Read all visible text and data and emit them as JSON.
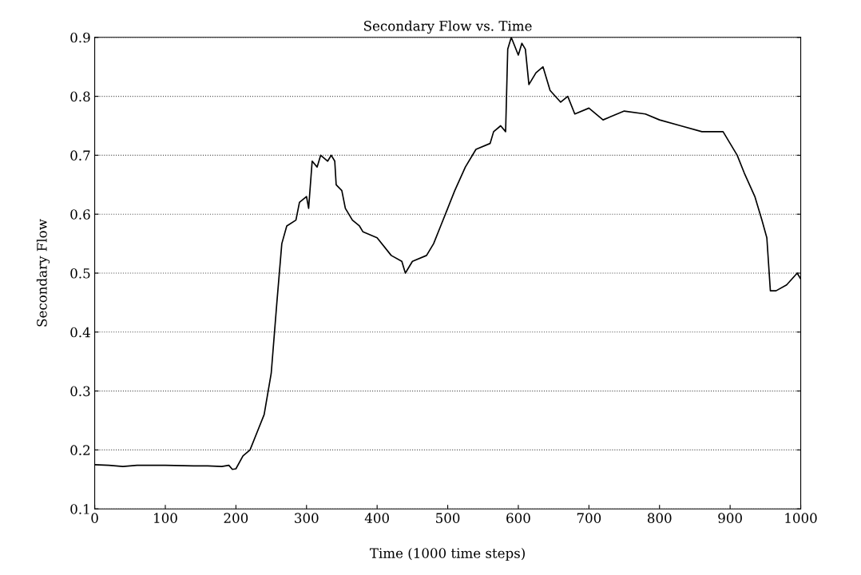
{
  "chart_data": {
    "type": "line",
    "title": "Secondary Flow vs. Time",
    "xlabel": "Time (1000 time steps)",
    "ylabel": "Secondary Flow",
    "xlim": [
      0,
      1000
    ],
    "ylim": [
      0.1,
      0.9
    ],
    "xticks": [
      0,
      100,
      200,
      300,
      400,
      500,
      600,
      700,
      800,
      900,
      1000
    ],
    "yticks": [
      {
        "value": 0.1,
        "label": "0.1"
      },
      {
        "value": 0.2,
        "label": "0.2"
      },
      {
        "value": 0.3,
        "label": "0.3"
      },
      {
        "value": 0.4,
        "label": "0.4"
      },
      {
        "value": 0.5,
        "label": "0.5"
      },
      {
        "value": 0.6,
        "label": "0.6"
      },
      {
        "value": 0.7,
        "label": "0.7"
      },
      {
        "value": 0.8,
        "label": "0.8"
      },
      {
        "value": 0.9,
        "label": "0.9"
      }
    ],
    "grid": "y",
    "line_style": "solid",
    "series": [
      {
        "color": "#000000",
        "x": [
          0,
          20,
          40,
          60,
          100,
          140,
          160,
          180,
          190,
          195,
          200,
          210,
          220,
          230,
          240,
          250,
          258,
          265,
          272,
          285,
          290,
          300,
          303,
          308,
          315,
          320,
          330,
          335,
          340,
          342,
          350,
          355,
          365,
          375,
          380,
          400,
          420,
          435,
          440,
          450,
          470,
          480,
          490,
          500,
          510,
          525,
          540,
          560,
          565,
          575,
          582,
          585,
          590,
          600,
          605,
          610,
          615,
          625,
          635,
          645,
          660,
          670,
          680,
          700,
          720,
          750,
          780,
          800,
          830,
          860,
          890,
          900,
          910,
          920,
          935,
          945,
          952,
          957,
          965,
          980,
          995,
          1000
        ],
        "values": [
          0.175,
          0.174,
          0.172,
          0.174,
          0.174,
          0.173,
          0.173,
          0.172,
          0.174,
          0.167,
          0.168,
          0.19,
          0.2,
          0.23,
          0.26,
          0.33,
          0.45,
          0.55,
          0.58,
          0.59,
          0.62,
          0.63,
          0.61,
          0.69,
          0.68,
          0.7,
          0.69,
          0.7,
          0.69,
          0.65,
          0.64,
          0.61,
          0.59,
          0.58,
          0.57,
          0.56,
          0.53,
          0.52,
          0.5,
          0.52,
          0.53,
          0.55,
          0.58,
          0.61,
          0.64,
          0.68,
          0.71,
          0.72,
          0.74,
          0.75,
          0.74,
          0.88,
          0.9,
          0.87,
          0.89,
          0.88,
          0.82,
          0.84,
          0.85,
          0.81,
          0.79,
          0.8,
          0.77,
          0.78,
          0.76,
          0.775,
          0.77,
          0.76,
          0.75,
          0.74,
          0.74,
          0.72,
          0.7,
          0.67,
          0.63,
          0.59,
          0.56,
          0.47,
          0.47,
          0.48,
          0.5,
          0.49
        ]
      }
    ]
  }
}
